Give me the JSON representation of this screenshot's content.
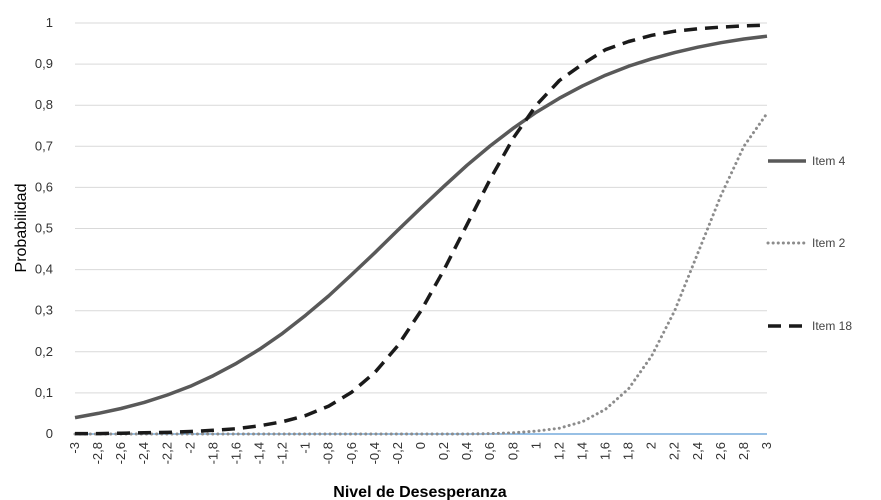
{
  "chart_data": {
    "type": "line",
    "xlabel": "Nivel de Desesperanza",
    "ylabel": "Probabilidad",
    "xlim": [
      -3,
      3
    ],
    "ylim": [
      0,
      1
    ],
    "grid": "horizontal",
    "legend_position": "right",
    "x": [
      -3,
      -2.8,
      -2.6,
      -2.4,
      -2.2,
      -2,
      -1.8,
      -1.6,
      -1.4,
      -1.2,
      -1,
      -0.8,
      -0.6,
      -0.4,
      -0.2,
      0,
      0.2,
      0.4,
      0.6,
      0.8,
      1,
      1.2,
      1.4,
      1.6,
      1.8,
      2,
      2.2,
      2.4,
      2.6,
      2.8,
      3
    ],
    "x_tick_labels": [
      "-3",
      "-2,8",
      "-2,6",
      "-2,4",
      "-2,2",
      "-2",
      "-1,8",
      "-1,6",
      "-1,4",
      "-1,2",
      "-1",
      "-0,8",
      "-0,6",
      "-0,4",
      "-0,2",
      "0",
      "0,2",
      "0,4",
      "0,6",
      "0,8",
      "1",
      "1,2",
      "1,4",
      "1,6",
      "1,8",
      "2",
      "2,2",
      "2,4",
      "2,6",
      "2,8",
      "3"
    ],
    "y_ticks": [
      0,
      0.1,
      0.2,
      0.3,
      0.4,
      0.5,
      0.6,
      0.7,
      0.8,
      0.9,
      1
    ],
    "y_tick_labels": [
      "0",
      "0,1",
      "0,2",
      "0,3",
      "0,4",
      "0,5",
      "0,6",
      "0,7",
      "0,8",
      "0,9",
      "1"
    ],
    "series": [
      {
        "name": "Item 4",
        "style": "solid",
        "color": "#595959",
        "values": [
          0.04,
          0.05,
          0.062,
          0.077,
          0.095,
          0.116,
          0.142,
          0.172,
          0.206,
          0.245,
          0.289,
          0.336,
          0.388,
          0.441,
          0.496,
          0.55,
          0.603,
          0.654,
          0.701,
          0.744,
          0.783,
          0.817,
          0.847,
          0.873,
          0.895,
          0.913,
          0.928,
          0.941,
          0.952,
          0.961,
          0.968
        ]
      },
      {
        "name": "Item 2",
        "style": "dotted",
        "color": "#8c8c8c",
        "values": [
          0,
          0,
          0,
          0,
          0,
          0,
          0,
          0,
          0,
          0,
          0,
          0,
          0,
          0,
          0,
          0,
          0,
          0,
          0.001,
          0.003,
          0.007,
          0.014,
          0.03,
          0.06,
          0.11,
          0.19,
          0.3,
          0.44,
          0.58,
          0.7,
          0.78
        ]
      },
      {
        "name": "Item 18",
        "style": "dashed",
        "color": "#1a1a1a",
        "values": [
          0.001,
          0.001,
          0.002,
          0.003,
          0.004,
          0.006,
          0.009,
          0.013,
          0.02,
          0.03,
          0.045,
          0.068,
          0.102,
          0.15,
          0.215,
          0.3,
          0.4,
          0.51,
          0.62,
          0.72,
          0.8,
          0.86,
          0.9,
          0.935,
          0.955,
          0.97,
          0.98,
          0.986,
          0.99,
          0.993,
          0.995
        ]
      }
    ],
    "baseline_color": "#5b9bd5",
    "grid_color": "#d9d9d9"
  }
}
